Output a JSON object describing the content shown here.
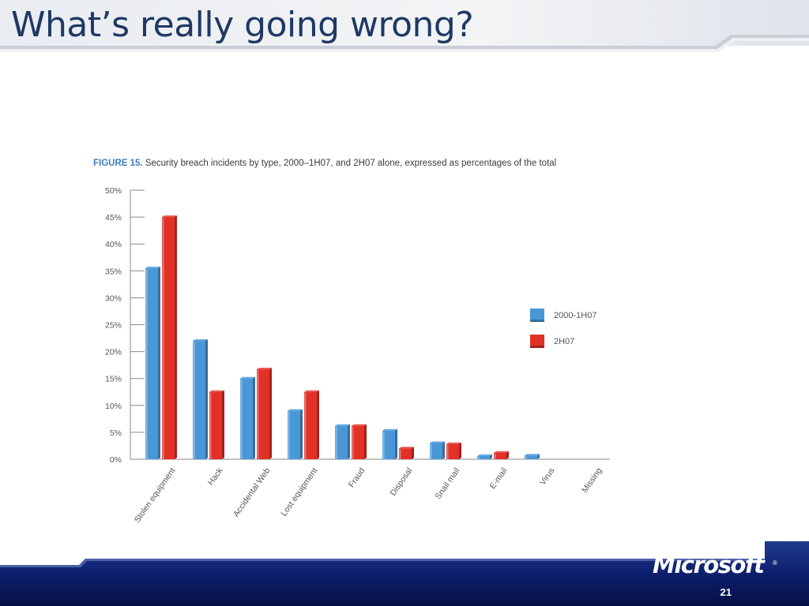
{
  "slide": {
    "title": "What’s really going wrong?",
    "logo": "Microsoft",
    "logo_mark": "®",
    "page_number": "21"
  },
  "colors": {
    "title": "#1f3864",
    "footer": "#0a1a6a",
    "series_1": "#4a97d8",
    "series_2": "#e23127",
    "axis": "#8a8a8a",
    "figure_label": "#3f7cc0"
  },
  "chart_data": {
    "type": "bar",
    "title_prefix": "FIGURE 15.",
    "title": "Security breach incidents by type, 2000–1H07, and 2H07 alone, expressed as percentages of the total",
    "categories": [
      "Stolen equipment",
      "Hack",
      "Accidental Web",
      "Lost equipment",
      "Fraud",
      "Disposal",
      "Snail mail",
      "E-mail",
      "Virus",
      "Missing"
    ],
    "series": [
      {
        "name": "2000-1H07",
        "values": [
          35.5,
          22,
          15,
          9,
          6.2,
          5.3,
          3,
          0.6,
          0.7,
          0
        ]
      },
      {
        "name": "2H07",
        "values": [
          45,
          12.5,
          16.7,
          12.5,
          6.2,
          2,
          2.8,
          1.2,
          0,
          0
        ]
      }
    ],
    "ylim": [
      0,
      50
    ],
    "yticks": [
      0,
      5,
      10,
      15,
      20,
      25,
      30,
      35,
      40,
      45,
      50
    ],
    "ytick_labels": [
      "0%",
      "5%",
      "10%",
      "15%",
      "20%",
      "25%",
      "30%",
      "35%",
      "40%",
      "45%",
      "50%"
    ],
    "xlabel": "",
    "ylabel": "",
    "legend_position": "right",
    "grid": false
  }
}
